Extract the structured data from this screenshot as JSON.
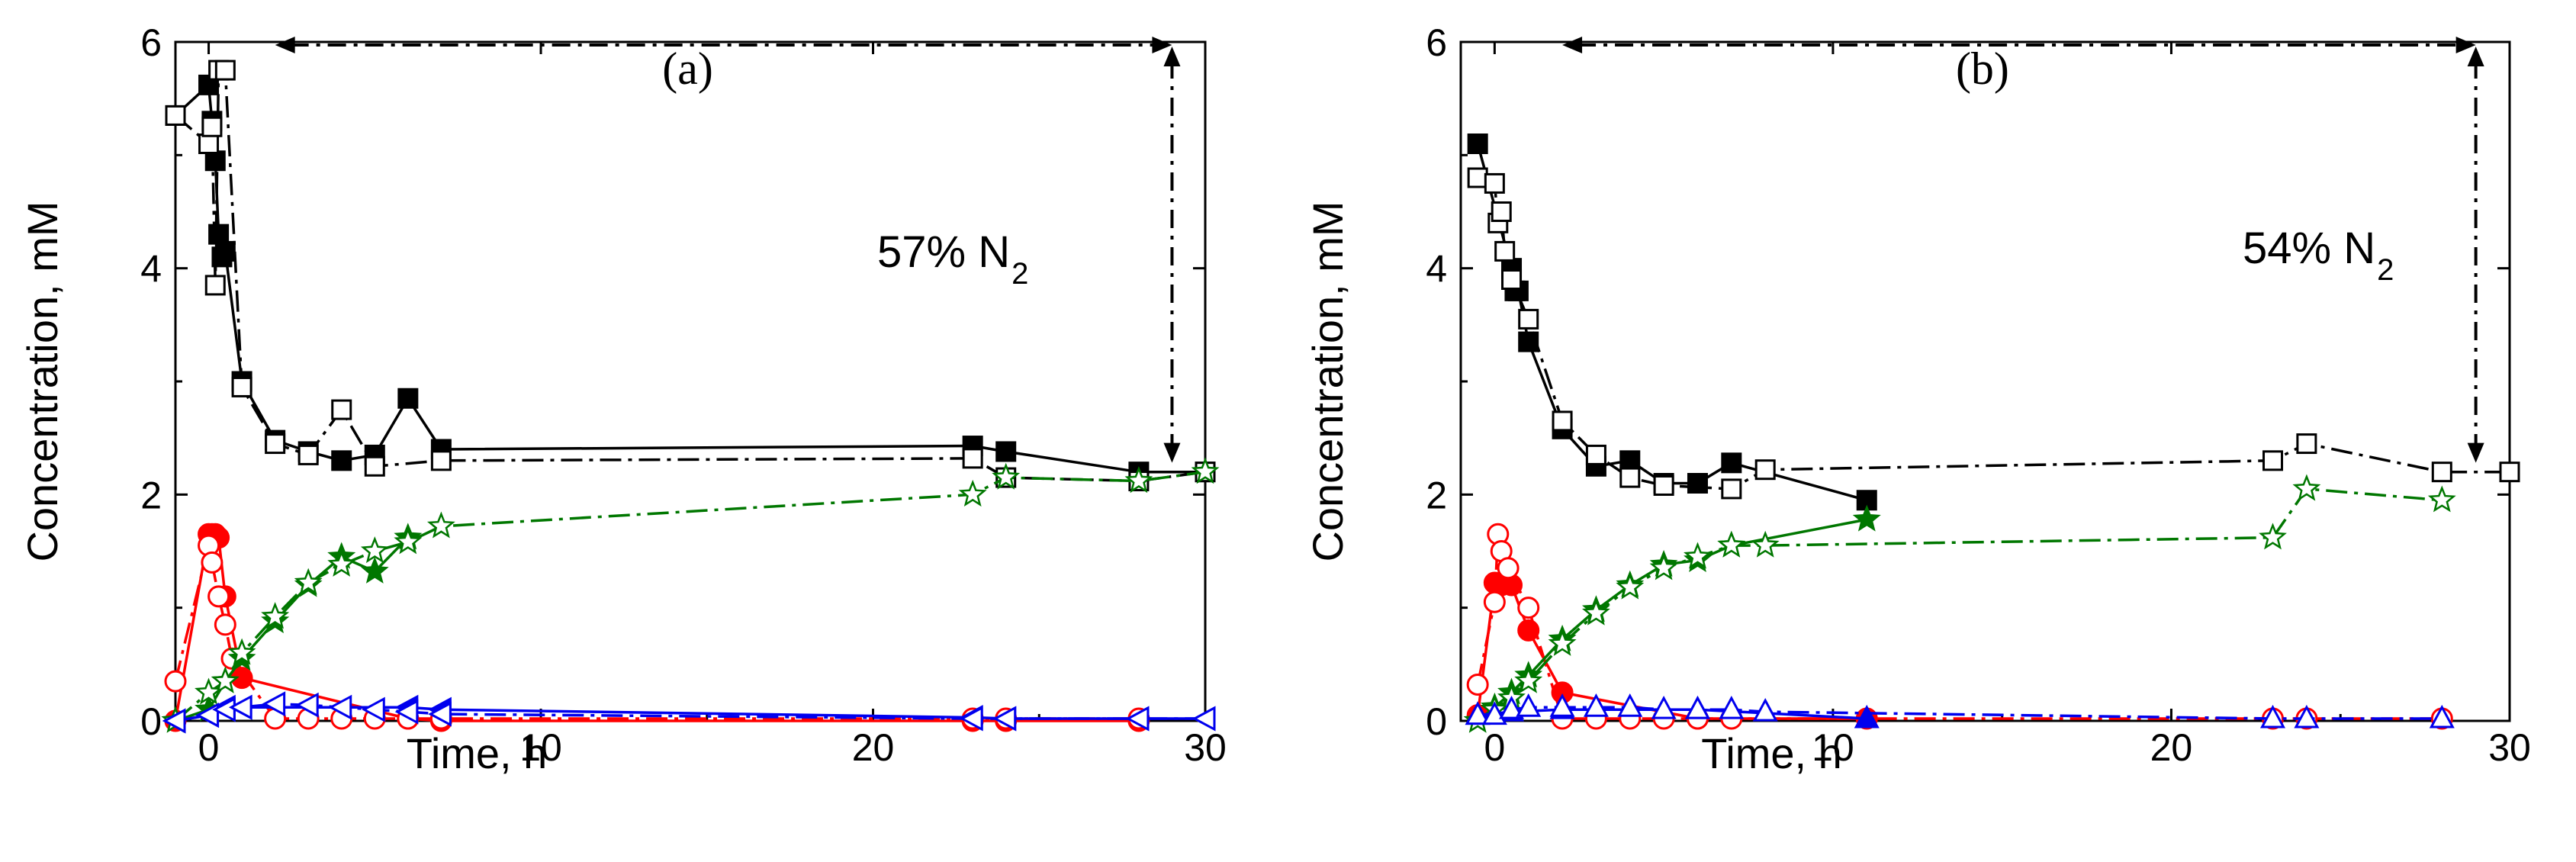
{
  "chart_data": [
    {
      "type": "line",
      "panel_label": "(a)",
      "annotation_text": "57% N",
      "annotation_sub": "2",
      "xlabel": "Time, h",
      "ylabel": "Concentration, mM",
      "xlim": [
        -1,
        30
      ],
      "ylim": [
        0,
        6
      ],
      "xticks": [
        0,
        10,
        20,
        30
      ],
      "yticks": [
        0,
        2,
        4,
        6
      ],
      "arrow": {
        "x_start": 2,
        "x_end": 29,
        "y_top": 6,
        "y_bottom": 2.2
      },
      "series": [
        {
          "name": "black-filled-square",
          "marker": "square",
          "filled": true,
          "color": "#000000",
          "dash": "solid",
          "x": [
            -1,
            0,
            0.1,
            0.2,
            0.3,
            0.4,
            0.5,
            1,
            2,
            3,
            4,
            5,
            6,
            7,
            23,
            24,
            28,
            30
          ],
          "y": [
            5.35,
            5.62,
            5.3,
            4.95,
            4.3,
            4.1,
            4.15,
            3.0,
            2.48,
            2.38,
            2.3,
            2.35,
            2.85,
            2.4,
            2.43,
            2.38,
            2.2,
            2.2
          ]
        },
        {
          "name": "black-open-square",
          "marker": "square",
          "filled": false,
          "color": "#000000",
          "dash": "dashdot",
          "x": [
            -1,
            0,
            0.1,
            0.2,
            0.3,
            0.5,
            1,
            2,
            3,
            4,
            5,
            7,
            23,
            24,
            28,
            30
          ],
          "y": [
            5.35,
            5.1,
            5.25,
            3.85,
            5.75,
            5.75,
            2.95,
            2.45,
            2.35,
            2.75,
            2.25,
            2.3,
            2.32,
            2.15,
            2.12,
            2.2
          ]
        },
        {
          "name": "red-filled-circle",
          "marker": "circle",
          "filled": true,
          "color": "#ff0000",
          "dash": "solid",
          "x": [
            -1,
            0,
            0.1,
            0.2,
            0.3,
            0.5,
            1,
            6,
            7,
            23,
            24,
            28
          ],
          "y": [
            0,
            1.65,
            1.65,
            1.65,
            1.62,
            1.1,
            0.38,
            0.02,
            0.0,
            0.0,
            0.0,
            0.0
          ]
        },
        {
          "name": "red-open-circle",
          "marker": "circle",
          "filled": false,
          "color": "#ff0000",
          "dash": "dashdot",
          "x": [
            -1,
            0,
            0.1,
            0.3,
            0.5,
            0.7,
            2,
            3,
            4,
            5,
            6,
            7,
            23,
            24,
            28
          ],
          "y": [
            0.35,
            1.55,
            1.4,
            1.1,
            0.85,
            0.55,
            0.02,
            0.02,
            0.02,
            0.02,
            0.02,
            0.02,
            0.02,
            0.02,
            0.02
          ]
        },
        {
          "name": "green-filled-star",
          "marker": "star",
          "filled": true,
          "color": "#007700",
          "dash": "solid",
          "x": [
            -1,
            0,
            0.5,
            1,
            2,
            3,
            4,
            5,
            6
          ],
          "y": [
            0,
            0.1,
            0.35,
            0.55,
            0.88,
            1.2,
            1.45,
            1.32,
            1.62
          ]
        },
        {
          "name": "green-open-star",
          "marker": "star",
          "filled": false,
          "color": "#007700",
          "dash": "dashdot",
          "x": [
            -1,
            0,
            0.5,
            1,
            2,
            3,
            4,
            5,
            6,
            7,
            23,
            24,
            28,
            30
          ],
          "y": [
            0,
            0.25,
            0.35,
            0.6,
            0.92,
            1.22,
            1.38,
            1.5,
            1.58,
            1.72,
            2.0,
            2.15,
            2.12,
            2.2
          ]
        },
        {
          "name": "blue-filled-triangle",
          "marker": "triangle-left",
          "filled": true,
          "color": "#0000ee",
          "dash": "solid",
          "x": [
            -1,
            0,
            0.5,
            1,
            6,
            7,
            23,
            24,
            28,
            30
          ],
          "y": [
            0,
            0.05,
            0.12,
            0.12,
            0.12,
            0.1,
            0.03,
            0.02,
            0.02,
            0.02
          ]
        },
        {
          "name": "blue-open-triangle",
          "marker": "triangle-left",
          "filled": false,
          "color": "#0000ee",
          "dash": "dashdot",
          "x": [
            -1,
            0,
            0.5,
            1,
            2,
            3,
            4,
            5,
            6,
            7,
            23,
            24,
            28,
            30
          ],
          "y": [
            0,
            0.05,
            0.1,
            0.12,
            0.15,
            0.14,
            0.12,
            0.1,
            0.08,
            0.06,
            0.02,
            0.02,
            0.02,
            0.02
          ]
        }
      ]
    },
    {
      "type": "line",
      "panel_label": "(b)",
      "annotation_text": "54% N",
      "annotation_sub": "2",
      "xlabel": "Time, h",
      "ylabel": "Concentration, mM",
      "xlim": [
        -1,
        30
      ],
      "ylim": [
        0,
        6
      ],
      "xticks": [
        0,
        10,
        20,
        30
      ],
      "yticks": [
        0,
        2,
        4,
        6
      ],
      "arrow": {
        "x_start": 2,
        "x_end": 29,
        "y_top": 6,
        "y_bottom": 2.2
      },
      "series": [
        {
          "name": "black-filled-square",
          "marker": "square",
          "filled": true,
          "color": "#000000",
          "dash": "solid",
          "x": [
            -0.5,
            0.5,
            0.6,
            0.7,
            1,
            2,
            3,
            4,
            5,
            6,
            7,
            11
          ],
          "y": [
            5.1,
            4.0,
            3.8,
            3.8,
            3.35,
            2.58,
            2.25,
            2.3,
            2.1,
            2.1,
            2.28,
            1.95
          ]
        },
        {
          "name": "black-open-square",
          "marker": "square",
          "filled": false,
          "color": "#000000",
          "dash": "dashdot",
          "x": [
            -0.5,
            0,
            0.1,
            0.2,
            0.3,
            0.5,
            1,
            2,
            3,
            4,
            5,
            7,
            8,
            23,
            24,
            28,
            30
          ],
          "y": [
            4.8,
            4.75,
            4.4,
            4.5,
            4.15,
            3.9,
            3.55,
            2.65,
            2.35,
            2.15,
            2.08,
            2.05,
            2.22,
            2.3,
            2.45,
            2.2,
            2.2
          ]
        },
        {
          "name": "red-filled-circle",
          "marker": "circle",
          "filled": true,
          "color": "#ff0000",
          "dash": "solid",
          "x": [
            -0.5,
            0,
            0.2,
            0.5,
            1,
            2,
            6,
            11
          ],
          "y": [
            0.05,
            1.22,
            1.2,
            1.2,
            0.8,
            0.25,
            0.02,
            0.02
          ]
        },
        {
          "name": "red-open-circle",
          "marker": "circle",
          "filled": false,
          "color": "#ff0000",
          "dash": "dashdot",
          "x": [
            -0.5,
            0,
            0.1,
            0.2,
            0.4,
            1,
            2,
            3,
            4,
            5,
            6,
            7,
            23,
            24,
            28
          ],
          "y": [
            0.32,
            1.05,
            1.65,
            1.5,
            1.35,
            1.0,
            0.02,
            0.02,
            0.02,
            0.02,
            0.02,
            0.02,
            0.02,
            0.02,
            0.02
          ]
        },
        {
          "name": "green-filled-star",
          "marker": "star",
          "filled": true,
          "color": "#007700",
          "dash": "solid",
          "x": [
            -0.5,
            0,
            0.5,
            1,
            2,
            3,
            4,
            5,
            6,
            7,
            11
          ],
          "y": [
            0,
            0.12,
            0.25,
            0.4,
            0.72,
            0.98,
            1.2,
            1.38,
            1.42,
            1.55,
            1.78
          ]
        },
        {
          "name": "green-open-star",
          "marker": "star",
          "filled": false,
          "color": "#007700",
          "dash": "dashdot",
          "x": [
            -0.5,
            0,
            0.5,
            1,
            2,
            3,
            4,
            5,
            6,
            7,
            8,
            23,
            24,
            28
          ],
          "y": [
            0,
            0.1,
            0.2,
            0.35,
            0.68,
            0.95,
            1.18,
            1.35,
            1.45,
            1.55,
            1.55,
            1.62,
            2.05,
            1.95
          ]
        },
        {
          "name": "blue-filled-triangle",
          "marker": "triangle-up",
          "filled": true,
          "color": "#0000ee",
          "dash": "solid",
          "x": [
            -0.5,
            0.5,
            2,
            6,
            11
          ],
          "y": [
            0.05,
            0.08,
            0.1,
            0.1,
            0.02
          ]
        },
        {
          "name": "blue-open-triangle",
          "marker": "triangle-up",
          "filled": false,
          "color": "#0000ee",
          "dash": "dashdot",
          "x": [
            -0.5,
            0,
            0.5,
            1,
            2,
            3,
            4,
            5,
            6,
            7,
            8,
            23,
            24,
            28
          ],
          "y": [
            0.05,
            0.05,
            0.1,
            0.12,
            0.12,
            0.12,
            0.12,
            0.1,
            0.1,
            0.1,
            0.08,
            0.02,
            0.02,
            0.02
          ]
        }
      ]
    }
  ]
}
